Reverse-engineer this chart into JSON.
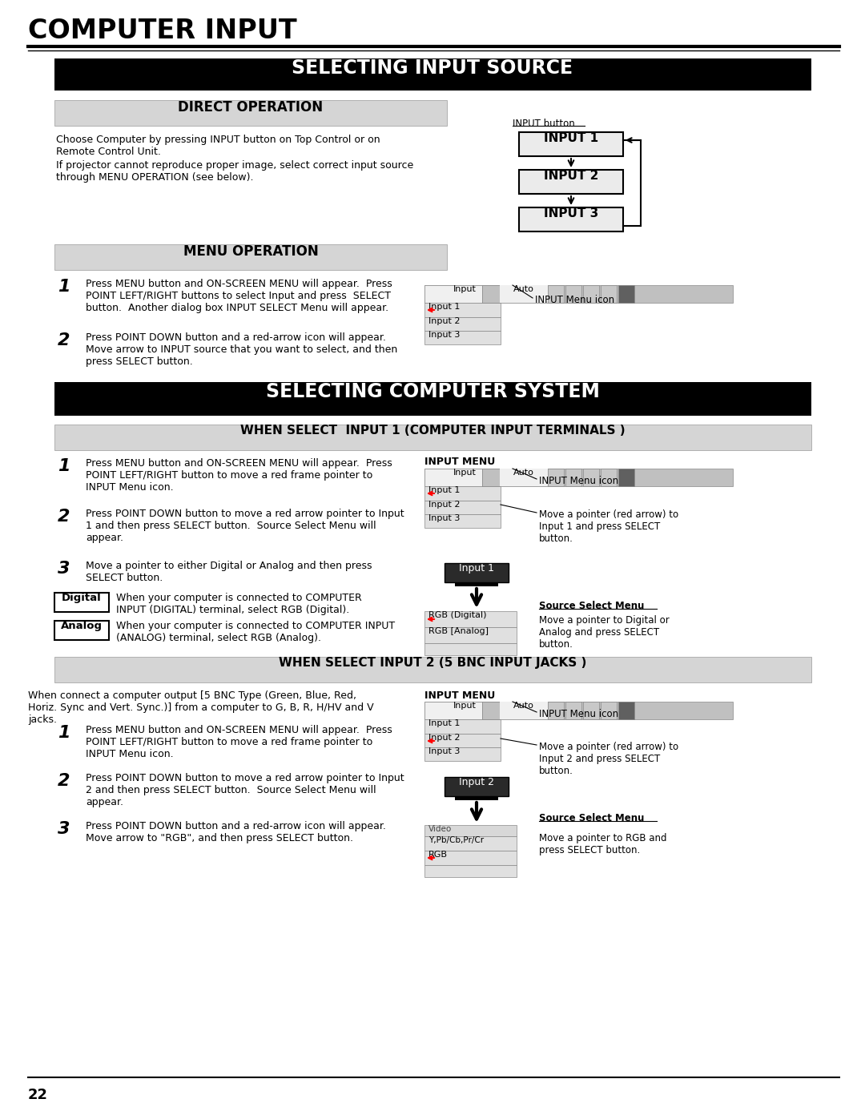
{
  "page_title": "COMPUTER INPUT",
  "page_number": "22",
  "bg_color": "#ffffff",
  "section1_title": "SELECTING INPUT SOURCE",
  "direct_op_title": "DIRECT OPERATION",
  "menu_op_title": "MENU OPERATION",
  "input_button_label": "INPUT button",
  "input1_label": "INPUT 1",
  "input2_label": "INPUT 2",
  "input3_label": "INPUT 3",
  "input_menu_icon_label": "INPUT Menu icon",
  "section2_title": "SELECTING COMPUTER SYSTEM",
  "when_select1_title": "WHEN SELECT  INPUT 1 (COMPUTER INPUT TERMINALS )",
  "cs1_input_menu_label": "INPUT MENU",
  "cs1_input_menu_icon": "INPUT Menu icon",
  "cs1_move_pointer_label": "Move a pointer (red arrow) to\nInput 1 and press SELECT\nbutton.",
  "cs1_source_select_label": "Source Select Menu",
  "cs1_digital_label": "Move a pointer to Digital or\nAnalog and press SELECT\nbutton.",
  "digital_box_text": "Digital",
  "analog_box_text": "Analog",
  "when_select2_title": "WHEN SELECT INPUT 2 (5 BNC INPUT JACKS )",
  "bnc_input_menu_label": "INPUT MENU",
  "bnc_input_menu_icon": "INPUT Menu icon",
  "bnc_move_pointer_label": "Move a pointer (red arrow) to\nInput 2 and press SELECT\nbutton.",
  "bnc_source_select_label": "Source Select Menu",
  "bnc_rgb_desc": "Move a pointer to RGB and\npress SELECT button."
}
